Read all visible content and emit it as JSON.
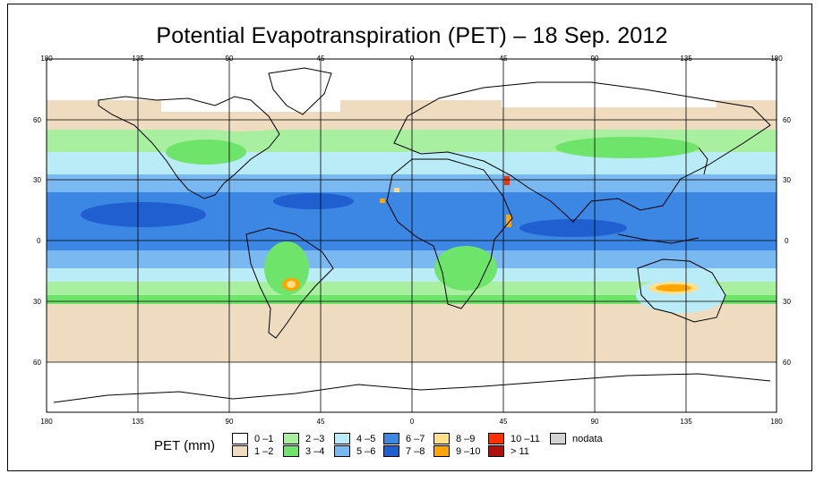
{
  "title": "Potential Evapotranspiration (PET) – 18 Sep. 2012",
  "lon_ticks": [
    "180",
    "135",
    "90",
    "45",
    "0",
    "45",
    "90",
    "135",
    "180"
  ],
  "lat_ticks": [
    "60",
    "30",
    "0",
    "30",
    "60"
  ],
  "legend": {
    "title": "PET (mm)",
    "items": [
      {
        "label": "0 –1",
        "color": "#ffffff"
      },
      {
        "label": "1 –2",
        "color": "#efdbbf"
      },
      {
        "label": "2 –3",
        "color": "#a8f0a0"
      },
      {
        "label": "3 –4",
        "color": "#6fe46a"
      },
      {
        "label": "4 –5",
        "color": "#b9ecf7"
      },
      {
        "label": "5 –6",
        "color": "#79b8f0"
      },
      {
        "label": "6 –7",
        "color": "#3c86e4"
      },
      {
        "label": "7 –8",
        "color": "#1f5fd0"
      },
      {
        "label": "8 –9",
        "color": "#ffe08a"
      },
      {
        "label": "9 –10",
        "color": "#ffa500"
      },
      {
        "label": "10 –11",
        "color": "#ff3000"
      },
      {
        "label": "> 11",
        "color": "#b01010"
      },
      {
        "label": "nodata",
        "color": "#d3d3d3"
      }
    ]
  },
  "colors": {
    "coast": "#000000",
    "grid": "#000000"
  }
}
